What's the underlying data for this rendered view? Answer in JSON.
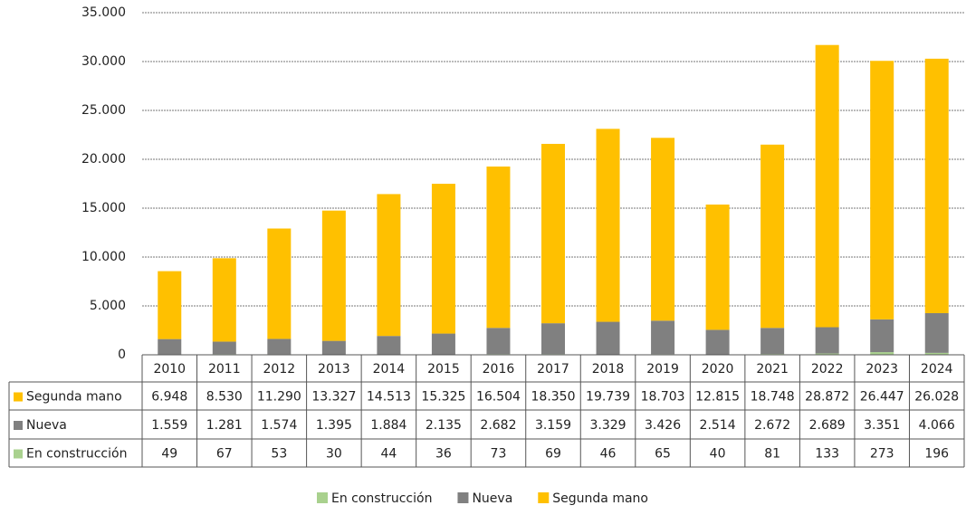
{
  "chart_data": {
    "type": "stacked_bar",
    "categories": [
      "2010",
      "2011",
      "2012",
      "2013",
      "2014",
      "2015",
      "2016",
      "2017",
      "2018",
      "2019",
      "2020",
      "2021",
      "2022",
      "2023",
      "2024"
    ],
    "series": [
      {
        "name": "En construcción",
        "color": "#a9d18e",
        "values": [
          49,
          67,
          53,
          30,
          44,
          36,
          73,
          69,
          46,
          65,
          40,
          81,
          133,
          273,
          196
        ],
        "value_labels": [
          "49",
          "67",
          "53",
          "30",
          "44",
          "36",
          "73",
          "69",
          "46",
          "65",
          "40",
          "81",
          "133",
          "273",
          "196"
        ]
      },
      {
        "name": "Nueva",
        "color": "#808080",
        "values": [
          1559,
          1281,
          1574,
          1395,
          1884,
          2135,
          2682,
          3159,
          3329,
          3426,
          2514,
          2672,
          2689,
          3351,
          4066
        ],
        "value_labels": [
          "1.559",
          "1.281",
          "1.574",
          "1.395",
          "1.884",
          "2.135",
          "2.682",
          "3.159",
          "3.329",
          "3.426",
          "2.514",
          "2.672",
          "2.689",
          "3.351",
          "4.066"
        ]
      },
      {
        "name": "Segunda mano",
        "color": "#ffc000",
        "values": [
          6948,
          8530,
          11290,
          13327,
          14513,
          15325,
          16504,
          18350,
          19739,
          18703,
          12815,
          18748,
          28872,
          26447,
          26028
        ],
        "value_labels": [
          "6.948",
          "8.530",
          "11.290",
          "13.327",
          "14.513",
          "15.325",
          "16.504",
          "18.350",
          "19.739",
          "18.703",
          "12.815",
          "18.748",
          "28.872",
          "26.447",
          "26.028"
        ]
      }
    ],
    "ylim": [
      0,
      35000
    ],
    "yticks": [
      0,
      {
        "value": 5000,
        "label": "5.000"
      },
      {
        "value": 10000,
        "label": "10.000"
      },
      {
        "value": 15000,
        "label": "15.000"
      },
      {
        "value": 20000,
        "label": "20.000"
      },
      {
        "value": 25000,
        "label": "25.000"
      },
      {
        "value": 30000,
        "label": "30.000"
      },
      {
        "value": 35000,
        "label": "35.000"
      }
    ],
    "grid": true,
    "legend": "bottom"
  }
}
